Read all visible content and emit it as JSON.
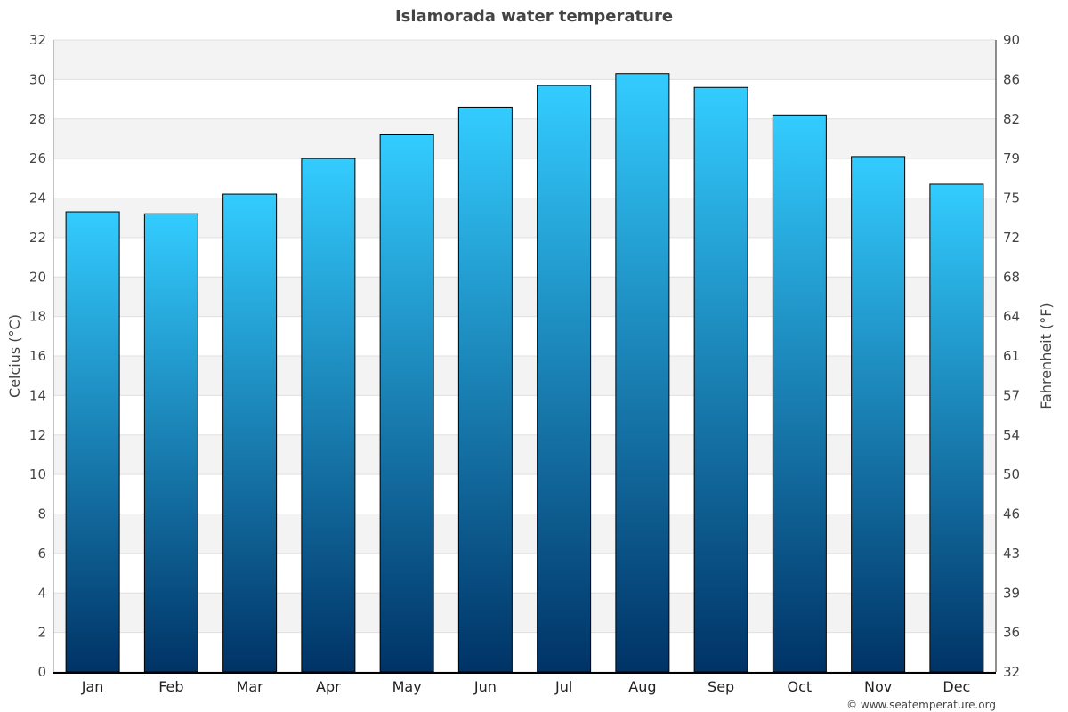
{
  "chart_data": {
    "type": "bar",
    "title": "Islamorada water temperature",
    "categories": [
      "Jan",
      "Feb",
      "Mar",
      "Apr",
      "May",
      "Jun",
      "Jul",
      "Aug",
      "Sep",
      "Oct",
      "Nov",
      "Dec"
    ],
    "values": [
      23.3,
      23.2,
      24.2,
      26.0,
      27.2,
      28.6,
      29.7,
      30.3,
      29.6,
      28.2,
      26.1,
      24.7
    ],
    "ylabel": "Celcius (°C)",
    "y2label": "Fahrenheit (°F)",
    "ylim": [
      0,
      32
    ],
    "yticks": [
      "0",
      "2",
      "4",
      "6",
      "8",
      "10",
      "12",
      "14",
      "16",
      "18",
      "20",
      "22",
      "24",
      "26",
      "28",
      "30",
      "32"
    ],
    "y2ticks": [
      "32",
      "36",
      "39",
      "43",
      "46",
      "50",
      "54",
      "57",
      "61",
      "64",
      "68",
      "72",
      "75",
      "79",
      "82",
      "86",
      "90"
    ],
    "grid": true,
    "colors": {
      "bar_top": "#33ccff",
      "bar_bottom": "#003366",
      "band": "#f3f3f3"
    }
  },
  "credit": "© www.seatemperature.org"
}
